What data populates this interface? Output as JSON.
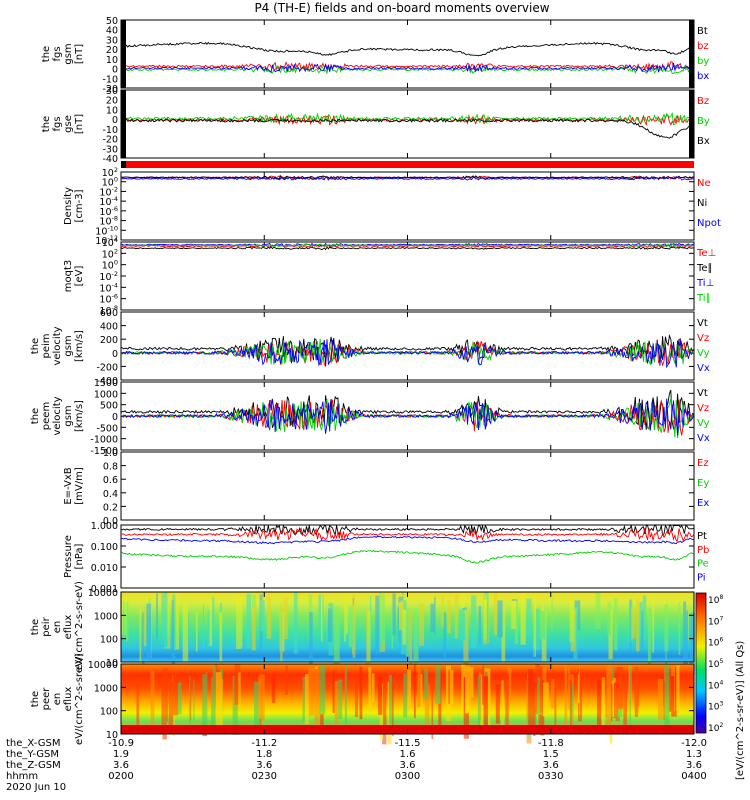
{
  "title": "P4 (TH-E) fields and on-board moments overview",
  "colors": {
    "black": "#000000",
    "red": "#ff0000",
    "green": "#00d000",
    "blue": "#0000ff",
    "gray": "#555555"
  },
  "bottom_axis": {
    "rows": [
      {
        "name": "the_X-GSM",
        "values": [
          "-10.9",
          "-11.2",
          "-11.5",
          "-11.8",
          "-12.0"
        ]
      },
      {
        "name": "the_Y-GSM",
        "values": [
          "1.9",
          "1.8",
          "1.6",
          "1.5",
          "1.3"
        ]
      },
      {
        "name": "the_Z-GSM",
        "values": [
          "3.6",
          "3.6",
          "3.6",
          "3.6",
          "3.6"
        ]
      },
      {
        "name": "hhmm",
        "values": [
          "0200",
          "0230",
          "0300",
          "0330",
          "0400"
        ]
      }
    ],
    "date": "2020 Jun 10"
  },
  "colorbar": {
    "ticks": [
      "10^8",
      "10^7",
      "10^6",
      "10^5",
      "10^4",
      "10^3",
      "10^2"
    ],
    "label": "[eV/(cm^2-s-sr-eV)] (All Qs)"
  },
  "chart_data": [
    {
      "type": "line",
      "ylabel": "the fgs gsm [nT]",
      "ylim": [
        -20,
        50
      ],
      "yticks": [
        "50",
        "40",
        "30",
        "20",
        "10",
        "0",
        "-10",
        "-20"
      ],
      "series": [
        {
          "name": "Bt",
          "color": "#000000"
        },
        {
          "name": "bz",
          "color": "#ff0000"
        },
        {
          "name": "by",
          "color": "#00d000"
        },
        {
          "name": "bx",
          "color": "#0000ff"
        }
      ]
    },
    {
      "type": "line",
      "ylabel": "the fgs gse [nT]",
      "ylim": [
        -40,
        30
      ],
      "yticks": [
        "30",
        "20",
        "10",
        "0",
        "-10",
        "-20",
        "-30",
        "-40"
      ],
      "series": [
        {
          "name": "Bz",
          "color": "#ff0000"
        },
        {
          "name": "By",
          "color": "#00d000"
        },
        {
          "name": "Bx",
          "color": "#000000"
        }
      ]
    },
    {
      "type": "line",
      "ylabel": "Density [cm-3]",
      "scale": "log",
      "yticks": [
        "10^2",
        "10^0",
        "10^-2",
        "10^-4",
        "10^-6",
        "10^-8",
        "10^-10",
        "10^-12"
      ],
      "series": [
        {
          "name": "Ne",
          "color": "#ff0000"
        },
        {
          "name": "Ni",
          "color": "#000000"
        },
        {
          "name": "Npot",
          "color": "#0000ff"
        }
      ]
    },
    {
      "type": "line",
      "ylabel": "moqt3 [eV]",
      "scale": "log",
      "yticks": [
        "10^4",
        "10^2",
        "10^0",
        "10^-2",
        "10^-4",
        "10^-6",
        "10^-8"
      ],
      "series": [
        {
          "name": "Te⊥",
          "color": "#ff0000"
        },
        {
          "name": "Te∥",
          "color": "#000000"
        },
        {
          "name": "Ti⊥",
          "color": "#0000ff"
        },
        {
          "name": "Ti∥",
          "color": "#00d000"
        }
      ]
    },
    {
      "type": "line",
      "ylabel": "the peim velocity gsm [km/s]",
      "ylim": [
        -400,
        600
      ],
      "yticks": [
        "600",
        "400",
        "200",
        "0",
        "-200",
        "-400"
      ],
      "series": [
        {
          "name": "Vt",
          "color": "#000000"
        },
        {
          "name": "Vz",
          "color": "#ff0000"
        },
        {
          "name": "Vy",
          "color": "#00d000"
        },
        {
          "name": "Vx",
          "color": "#0000ff"
        }
      ]
    },
    {
      "type": "line",
      "ylabel": "the peem velocity gsm [km/s]",
      "ylim": [
        -1500,
        1500
      ],
      "yticks": [
        "1500",
        "1000",
        "500",
        "0",
        "-500",
        "-1000",
        "-1500"
      ],
      "series": [
        {
          "name": "Vt",
          "color": "#000000"
        },
        {
          "name": "Vz",
          "color": "#ff0000"
        },
        {
          "name": "Vy",
          "color": "#00d000"
        },
        {
          "name": "Vx",
          "color": "#0000ff"
        }
      ]
    },
    {
      "type": "line",
      "ylabel": "E=-VxB [mV/m]",
      "ylim": [
        0,
        1
      ],
      "yticks": [
        "1.0",
        "0.8",
        "0.6",
        "0.4",
        "0.2",
        "0.0"
      ],
      "series": [
        {
          "name": "Ez",
          "color": "#ff0000"
        },
        {
          "name": "Ey",
          "color": "#00d000"
        },
        {
          "name": "Ex",
          "color": "#0000ff"
        }
      ]
    },
    {
      "type": "line",
      "ylabel": "Pressure [nPa]",
      "scale": "log",
      "yticks": [
        "1.000",
        "0.100",
        "0.010",
        "0.001"
      ],
      "series": [
        {
          "name": "Pt",
          "color": "#000000"
        },
        {
          "name": "Pb",
          "color": "#ff0000"
        },
        {
          "name": "Pe",
          "color": "#00d000"
        },
        {
          "name": "Pi",
          "color": "#0000ff"
        }
      ]
    },
    {
      "type": "heatmap",
      "ylabel": "the peir en eflux eV/(cm^2-s-sr-eV)",
      "scale": "log",
      "yticks": [
        "10000",
        "1000",
        "100",
        "10"
      ]
    },
    {
      "type": "heatmap",
      "ylabel": "the peer en eflux eV/(cm^2-s-sr-eV)",
      "scale": "log",
      "yticks": [
        "10000",
        "1000",
        "100",
        "10"
      ]
    }
  ]
}
